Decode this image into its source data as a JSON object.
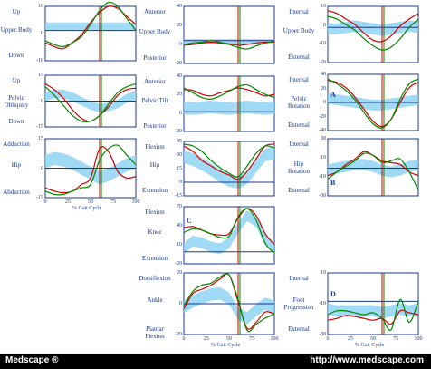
{
  "chart_data": [
    {
      "id": "tl",
      "type": "line",
      "ytop": "Up",
      "ymid": "Upper Body",
      "ybot": "Down",
      "yticks": [
        "10",
        "0",
        "-10"
      ],
      "ylim": [
        -15,
        12
      ],
      "band_center": [
        2,
        2,
        2,
        2,
        2,
        2,
        2,
        2,
        2,
        2,
        2
      ],
      "band_half": [
        2,
        2,
        2,
        2,
        2,
        2,
        2,
        2,
        2,
        2,
        2
      ],
      "series": [
        {
          "color": "#cc0000",
          "values": [
            -6,
            -8,
            -9,
            -6,
            -2,
            4,
            9,
            12,
            11,
            7,
            3
          ]
        },
        {
          "color": "#008800",
          "values": [
            -5,
            -7,
            -8,
            -6,
            -3,
            3,
            10,
            14,
            12,
            6,
            0
          ]
        }
      ]
    },
    {
      "id": "tm",
      "type": "line",
      "ytop": "Anterior",
      "ymid": "Upper Body",
      "ybot": "Posterior",
      "yticks": [
        "40",
        "20",
        "0",
        "-20"
      ],
      "ylim": [
        -30,
        45
      ],
      "band_center": [
        -1,
        -1,
        -1,
        -1,
        -1,
        -1,
        -1,
        -1,
        -1,
        -1,
        -1
      ],
      "band_half": [
        3,
        3,
        3,
        3,
        3,
        3,
        3,
        3,
        3,
        3,
        3
      ],
      "series": [
        {
          "color": "#cc0000",
          "values": [
            -6,
            -5,
            -3,
            -2,
            -3,
            -4,
            -6,
            -5,
            -3,
            -2,
            -2
          ]
        },
        {
          "color": "#008800",
          "values": [
            -5,
            -3,
            -2,
            0,
            -2,
            -5,
            -9,
            -11,
            -7,
            -3,
            -1
          ]
        }
      ]
    },
    {
      "id": "tr",
      "type": "line",
      "ytop": "Internal",
      "ymid": "Upper Body",
      "ybot": "External",
      "yticks": [
        "10",
        "0",
        "-10",
        "-20"
      ],
      "ylim": [
        -25,
        15
      ],
      "band_center": [
        -1,
        -1,
        0,
        1,
        0,
        -1,
        -2,
        -1,
        0,
        1,
        0
      ],
      "band_half": [
        4,
        4,
        4,
        4,
        4,
        4,
        4,
        4,
        4,
        4,
        4
      ],
      "series": [
        {
          "color": "#cc0000",
          "values": [
            12,
            10,
            6,
            2,
            -4,
            -9,
            -10,
            -6,
            1,
            6,
            10
          ]
        },
        {
          "color": "#008800",
          "values": [
            8,
            6,
            2,
            -2,
            -8,
            -13,
            -16,
            -14,
            -8,
            0,
            6
          ]
        }
      ]
    },
    {
      "id": "ml",
      "type": "line",
      "ytop": "Up",
      "ymid": "Pelvic Obliquity",
      "ybot": "Down",
      "yticks": [
        "15",
        "0",
        "-15"
      ],
      "ylim": [
        -18,
        18
      ],
      "band_center": [
        3,
        5,
        5,
        3,
        0,
        -3,
        -5,
        -4,
        -2,
        2,
        4
      ],
      "band_half": [
        3,
        3,
        3,
        3,
        3,
        3,
        3,
        3,
        3,
        3,
        3
      ],
      "series": [
        {
          "color": "#cc0000",
          "values": [
            12,
            8,
            2,
            -6,
            -12,
            -14,
            -10,
            -4,
            4,
            8,
            9
          ]
        },
        {
          "color": "#008800",
          "values": [
            10,
            4,
            -3,
            -10,
            -14,
            -14,
            -10,
            -2,
            6,
            10,
            12
          ]
        }
      ]
    },
    {
      "id": "mm",
      "type": "line",
      "ytop": "Anterior",
      "ymid": "Pelvic Tilt",
      "ybot": "Posterior",
      "yticks": [
        "40",
        "20",
        "0",
        "-20"
      ],
      "ylim": [
        -25,
        45
      ],
      "band_center": [
        5,
        4,
        5,
        6,
        5,
        4,
        5,
        6,
        5,
        4,
        5
      ],
      "band_half": [
        8,
        8,
        8,
        8,
        8,
        8,
        8,
        8,
        8,
        8,
        8
      ],
      "series": [
        {
          "color": "#cc0000",
          "values": [
            28,
            27,
            22,
            20,
            24,
            27,
            30,
            28,
            24,
            20,
            22
          ]
        },
        {
          "color": "#008800",
          "values": [
            30,
            24,
            18,
            16,
            20,
            26,
            32,
            34,
            28,
            22,
            18
          ]
        }
      ]
    },
    {
      "id": "mr",
      "type": "line",
      "ytop": "Internal",
      "ymid": "Pelvic Rotation",
      "ybot": "External",
      "yticks": [
        "40",
        "20",
        "0",
        "-20",
        "-40"
      ],
      "ylim": [
        -42,
        42
      ],
      "band_center": [
        6,
        4,
        2,
        0,
        -2,
        -4,
        -4,
        -2,
        0,
        2,
        4
      ],
      "band_half": [
        8,
        8,
        8,
        8,
        8,
        8,
        8,
        8,
        8,
        8,
        8
      ],
      "series": [
        {
          "color": "#cc0000",
          "values": [
            33,
            30,
            22,
            8,
            -10,
            -28,
            -36,
            -25,
            0,
            22,
            30
          ]
        },
        {
          "color": "#008800",
          "values": [
            35,
            28,
            18,
            4,
            -15,
            -32,
            -38,
            -25,
            5,
            28,
            35
          ]
        }
      ],
      "letter": "A"
    },
    {
      "id": "hl",
      "type": "line",
      "ytop": "Adduction",
      "ymid": "Hip",
      "ybot": "Abduction",
      "yticks": [
        "15",
        "0",
        "-15"
      ],
      "ylim": [
        -18,
        18
      ],
      "band_center": [
        4,
        6,
        5,
        3,
        0,
        -3,
        -6,
        -4,
        -1,
        2,
        4
      ],
      "band_half": [
        4,
        4,
        4,
        4,
        4,
        4,
        4,
        4,
        4,
        4,
        4
      ],
      "series": [
        {
          "color": "#cc0000",
          "values": [
            -12,
            -14,
            -15,
            -14,
            -10,
            -6,
            12,
            10,
            -2,
            -6,
            -5
          ]
        },
        {
          "color": "#008800",
          "values": [
            -14,
            -16,
            -16,
            -14,
            -12,
            -10,
            5,
            12,
            14,
            8,
            2
          ]
        }
      ],
      "xticks": [
        "0",
        "25",
        "50",
        "75",
        "100"
      ],
      "xlabel": "% Gait Cycle"
    },
    {
      "id": "hm",
      "type": "line",
      "ytop": "Flexion",
      "ymid": "Hip",
      "ybot": "Extension",
      "yticks": [
        "45",
        "30",
        "15",
        "0",
        "-15"
      ],
      "ylim": [
        -15,
        45
      ],
      "band_center": [
        28,
        25,
        20,
        14,
        7,
        2,
        0,
        5,
        18,
        30,
        33
      ],
      "band_half": [
        7,
        7,
        7,
        7,
        7,
        7,
        7,
        7,
        7,
        7,
        7
      ],
      "series": [
        {
          "color": "#cc0000",
          "values": [
            40,
            34,
            24,
            18,
            12,
            8,
            3,
            12,
            26,
            40,
            42
          ]
        },
        {
          "color": "#008800",
          "values": [
            42,
            40,
            34,
            24,
            16,
            10,
            6,
            18,
            32,
            40,
            38
          ]
        }
      ]
    },
    {
      "id": "hr",
      "type": "line",
      "ytop": "Internal",
      "ymid": "Hip Rotation",
      "ybot": "External",
      "yticks": [
        "30",
        "10",
        "-10",
        "-30"
      ],
      "ylim": [
        -30,
        32
      ],
      "band_center": [
        -2,
        0,
        2,
        4,
        4,
        2,
        -2,
        -4,
        -2,
        2,
        4
      ],
      "band_half": [
        6,
        6,
        6,
        6,
        6,
        6,
        6,
        6,
        6,
        6,
        6
      ],
      "series": [
        {
          "color": "#cc0000",
          "values": [
            -8,
            -4,
            4,
            10,
            18,
            14,
            8,
            6,
            4,
            -4,
            -8
          ]
        },
        {
          "color": "#008800",
          "values": [
            -12,
            -4,
            2,
            8,
            16,
            14,
            6,
            8,
            10,
            -4,
            -24
          ]
        }
      ],
      "letter": "B"
    },
    {
      "id": "knee",
      "type": "line",
      "ytop": "Flexion",
      "ymid": "Knee",
      "ybot": "Extension",
      "yticks": [
        "70",
        "40",
        "10",
        "-20"
      ],
      "ylim": [
        -20,
        75
      ],
      "band_center": [
        5,
        18,
        15,
        8,
        5,
        15,
        40,
        60,
        50,
        20,
        5
      ],
      "band_half": [
        9,
        9,
        9,
        9,
        9,
        9,
        9,
        9,
        9,
        9,
        9
      ],
      "series": [
        {
          "color": "#cc0000",
          "values": [
            40,
            42,
            36,
            30,
            28,
            30,
            56,
            72,
            60,
            30,
            12
          ]
        },
        {
          "color": "#008800",
          "values": [
            32,
            38,
            36,
            30,
            24,
            26,
            58,
            72,
            52,
            14,
            -2
          ]
        }
      ],
      "letter": "C"
    },
    {
      "id": "ankle",
      "type": "line",
      "ytop": "Dorsiflexion",
      "ymid": "Ankle",
      "ybot": "Plantar Flexion",
      "yticks": [
        "20",
        "0",
        "-20"
      ],
      "ylim": [
        -30,
        30
      ],
      "band_center": [
        -3,
        2,
        6,
        9,
        10,
        5,
        -10,
        -14,
        -6,
        0,
        -3
      ],
      "band_half": [
        6,
        6,
        6,
        6,
        6,
        6,
        6,
        6,
        6,
        6,
        6
      ],
      "series": [
        {
          "color": "#cc0000",
          "values": [
            -5,
            10,
            14,
            18,
            24,
            28,
            2,
            -24,
            -18,
            -8,
            -10
          ]
        },
        {
          "color": "#008800",
          "values": [
            -2,
            12,
            18,
            20,
            26,
            28,
            4,
            -26,
            -20,
            -14,
            -10
          ]
        }
      ],
      "xticks": [
        "0",
        "25",
        "50",
        "75",
        "100"
      ],
      "xlabel": "% Gait Cycle"
    },
    {
      "id": "foot",
      "type": "line",
      "ytop": "Internal",
      "ymid": "Foot Progression",
      "ybot": "External",
      "yticks": [
        "10",
        "-10",
        "-30"
      ],
      "ylim": [
        -35,
        30
      ],
      "band_center": [
        -8,
        -10,
        -10,
        -10,
        -10,
        -10,
        -12,
        -10,
        -8,
        -10,
        -8
      ],
      "band_half": [
        6,
        6,
        6,
        6,
        6,
        6,
        6,
        6,
        6,
        6,
        6
      ],
      "series": [
        {
          "color": "#cc0000",
          "values": [
            -20,
            -18,
            -15,
            -16,
            -18,
            -20,
            -18,
            -24,
            -10,
            -12,
            -14
          ]
        },
        {
          "color": "#008800",
          "values": [
            -14,
            -10,
            -10,
            -12,
            -14,
            -12,
            -18,
            -30,
            2,
            -22,
            0
          ]
        }
      ],
      "letter": "D",
      "xticks": [
        "0",
        "25",
        "50",
        "75",
        "100"
      ],
      "xlabel": "% Gait Cycle"
    }
  ],
  "footer": {
    "left": "Medscape ®",
    "right": "http://www.medscape.com"
  }
}
